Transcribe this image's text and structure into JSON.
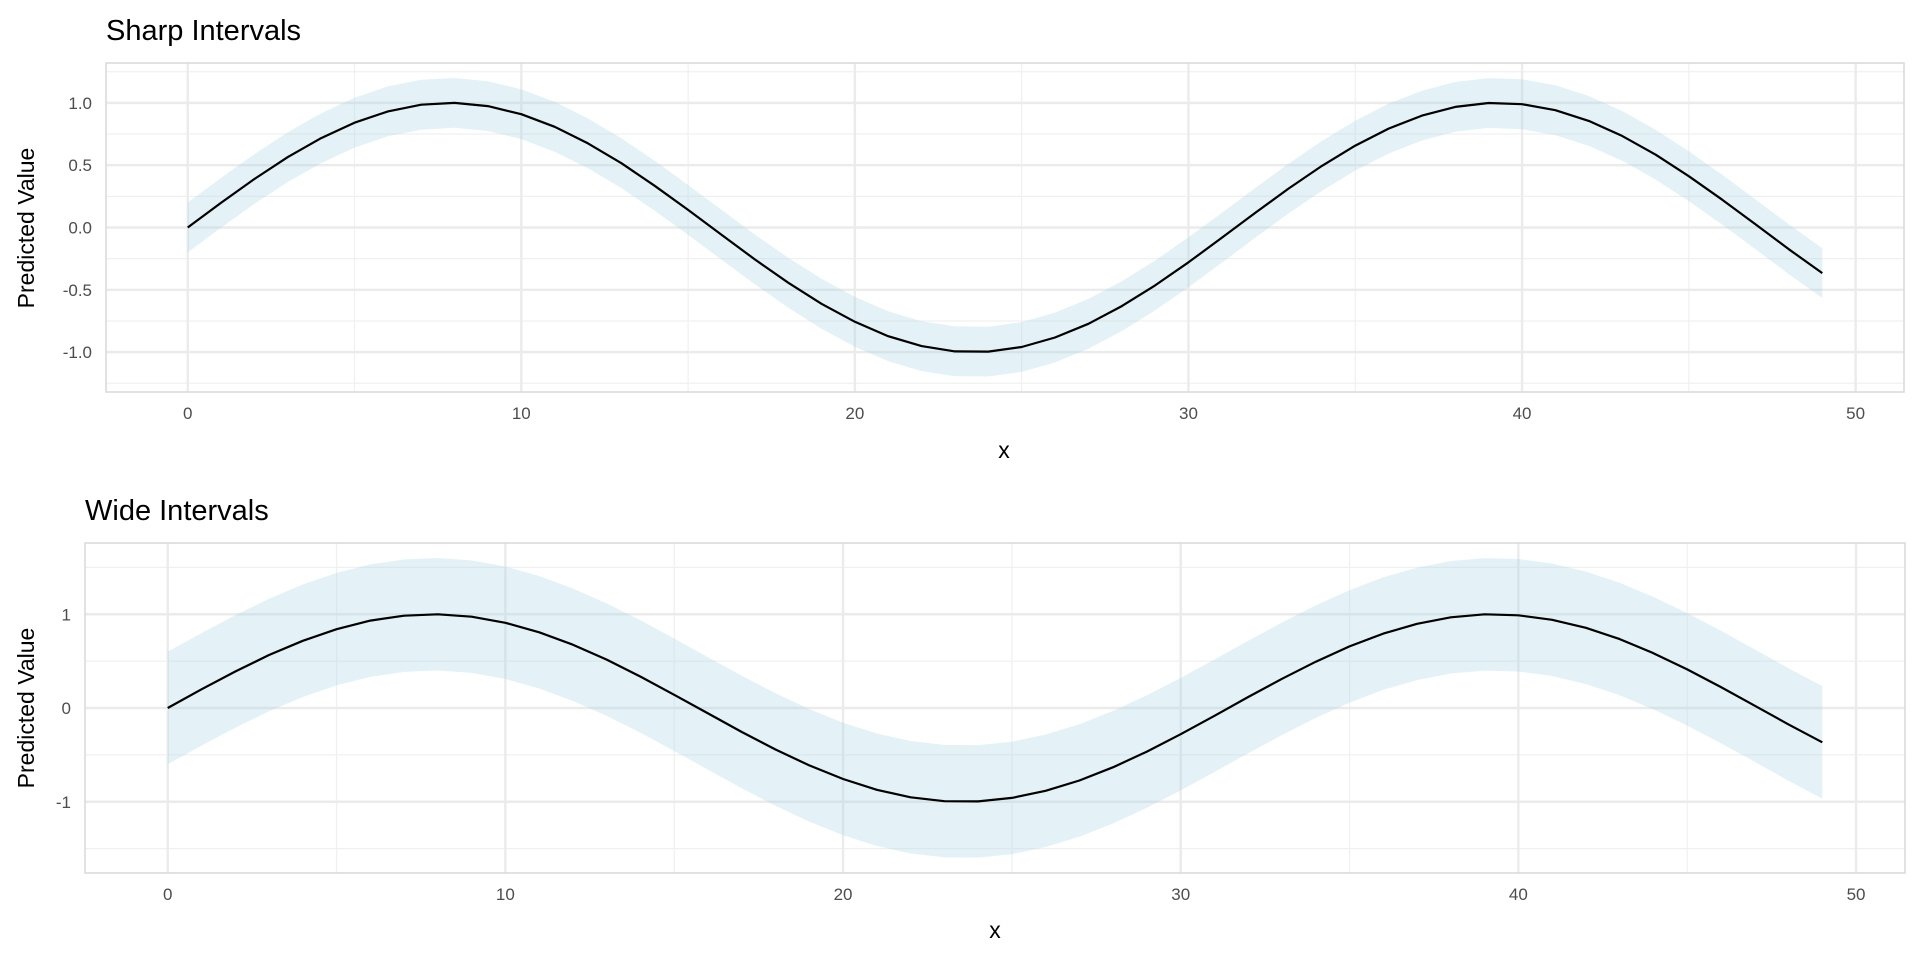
{
  "chart_data": [
    {
      "type": "line",
      "title": "Sharp Intervals",
      "xlabel": "x",
      "ylabel": "Predicted Value",
      "xlim": [
        -2.45,
        51.45
      ],
      "ylim": [
        -1.32,
        1.32
      ],
      "x_ticks": [
        0,
        10,
        20,
        30,
        40,
        50
      ],
      "y_ticks": [
        -1.0,
        -0.5,
        0.0,
        0.5,
        1.0
      ],
      "y_tick_labels": [
        "-1.0",
        "-0.5",
        "0.0",
        "0.5",
        "1.0"
      ],
      "grid": true,
      "colors": {
        "line": "#000000",
        "ribbon": "#add8e6"
      },
      "x": [
        0,
        1,
        2,
        3,
        4,
        5,
        6,
        7,
        8,
        9,
        10,
        11,
        12,
        13,
        14,
        15,
        16,
        17,
        18,
        19,
        20,
        21,
        22,
        23,
        24,
        25,
        26,
        27,
        28,
        29,
        30,
        31,
        32,
        33,
        34,
        35,
        36,
        37,
        38,
        39,
        40,
        41,
        42,
        43,
        44,
        45,
        46,
        47,
        48,
        49
      ],
      "y": [
        0,
        0.199,
        0.389,
        0.565,
        0.717,
        0.841,
        0.932,
        0.985,
        1.0,
        0.974,
        0.909,
        0.808,
        0.675,
        0.516,
        0.335,
        0.141,
        -0.058,
        -0.256,
        -0.443,
        -0.612,
        -0.757,
        -0.872,
        -0.952,
        -0.994,
        -0.996,
        -0.959,
        -0.883,
        -0.773,
        -0.631,
        -0.465,
        -0.279,
        -0.083,
        0.117,
        0.312,
        0.494,
        0.657,
        0.794,
        0.898,
        0.968,
        0.999,
        0.989,
        0.941,
        0.855,
        0.735,
        0.585,
        0.412,
        0.223,
        0.025,
        -0.175,
        -0.366
      ],
      "lower": [
        -0.2,
        -0.001,
        0.189,
        0.365,
        0.517,
        0.641,
        0.732,
        0.785,
        0.8,
        0.774,
        0.709,
        0.608,
        0.475,
        0.316,
        0.135,
        -0.059,
        -0.258,
        -0.456,
        -0.643,
        -0.812,
        -0.957,
        -1.072,
        -1.152,
        -1.194,
        -1.196,
        -1.159,
        -1.083,
        -0.973,
        -0.831,
        -0.665,
        -0.479,
        -0.283,
        -0.083,
        0.112,
        0.294,
        0.457,
        0.594,
        0.698,
        0.768,
        0.799,
        0.789,
        0.741,
        0.655,
        0.535,
        0.385,
        0.212,
        0.023,
        -0.175,
        -0.375,
        -0.566
      ],
      "upper": [
        0.2,
        0.399,
        0.589,
        0.765,
        0.917,
        1.041,
        1.132,
        1.185,
        1.2,
        1.174,
        1.109,
        1.008,
        0.875,
        0.716,
        0.535,
        0.341,
        0.142,
        -0.056,
        -0.243,
        -0.412,
        -0.557,
        -0.672,
        -0.752,
        -0.794,
        -0.796,
        -0.759,
        -0.683,
        -0.573,
        -0.431,
        -0.265,
        -0.079,
        0.117,
        0.317,
        0.512,
        0.694,
        0.857,
        0.994,
        1.098,
        1.168,
        1.199,
        1.189,
        1.141,
        1.055,
        0.935,
        0.785,
        0.612,
        0.423,
        0.225,
        0.025,
        -0.166
      ]
    },
    {
      "type": "line",
      "title": "Wide Intervals",
      "xlabel": "x",
      "ylabel": "Predicted Value",
      "xlim": [
        -2.45,
        51.45
      ],
      "ylim": [
        -1.76,
        1.76
      ],
      "x_ticks": [
        0,
        10,
        20,
        30,
        40,
        50
      ],
      "y_ticks": [
        -1,
        0,
        1
      ],
      "y_tick_labels": [
        "-1",
        "0",
        "1"
      ],
      "grid": true,
      "colors": {
        "line": "#000000",
        "ribbon": "#add8e6"
      },
      "x": [
        0,
        1,
        2,
        3,
        4,
        5,
        6,
        7,
        8,
        9,
        10,
        11,
        12,
        13,
        14,
        15,
        16,
        17,
        18,
        19,
        20,
        21,
        22,
        23,
        24,
        25,
        26,
        27,
        28,
        29,
        30,
        31,
        32,
        33,
        34,
        35,
        36,
        37,
        38,
        39,
        40,
        41,
        42,
        43,
        44,
        45,
        46,
        47,
        48,
        49
      ],
      "y": [
        0,
        0.199,
        0.389,
        0.565,
        0.717,
        0.841,
        0.932,
        0.985,
        1.0,
        0.974,
        0.909,
        0.808,
        0.675,
        0.516,
        0.335,
        0.141,
        -0.058,
        -0.256,
        -0.443,
        -0.612,
        -0.757,
        -0.872,
        -0.952,
        -0.994,
        -0.996,
        -0.959,
        -0.883,
        -0.773,
        -0.631,
        -0.465,
        -0.279,
        -0.083,
        0.117,
        0.312,
        0.494,
        0.657,
        0.794,
        0.898,
        0.968,
        0.999,
        0.989,
        0.941,
        0.855,
        0.735,
        0.585,
        0.412,
        0.223,
        0.025,
        -0.175,
        -0.366
      ],
      "lower": [
        -0.6,
        -0.401,
        -0.211,
        -0.035,
        0.117,
        0.241,
        0.332,
        0.385,
        0.4,
        0.374,
        0.309,
        0.208,
        0.075,
        -0.084,
        -0.265,
        -0.459,
        -0.658,
        -0.856,
        -1.043,
        -1.212,
        -1.357,
        -1.472,
        -1.552,
        -1.594,
        -1.596,
        -1.559,
        -1.483,
        -1.373,
        -1.231,
        -1.065,
        -0.879,
        -0.683,
        -0.483,
        -0.288,
        -0.106,
        0.057,
        0.194,
        0.298,
        0.368,
        0.399,
        0.389,
        0.341,
        0.255,
        0.135,
        -0.015,
        -0.188,
        -0.377,
        -0.575,
        -0.775,
        -0.966
      ],
      "upper": [
        0.6,
        0.799,
        0.989,
        1.165,
        1.317,
        1.441,
        1.532,
        1.585,
        1.6,
        1.574,
        1.509,
        1.408,
        1.275,
        1.116,
        0.935,
        0.741,
        0.542,
        0.344,
        0.157,
        -0.012,
        -0.157,
        -0.272,
        -0.352,
        -0.394,
        -0.396,
        -0.359,
        -0.283,
        -0.173,
        -0.031,
        0.135,
        0.321,
        0.517,
        0.717,
        0.912,
        1.094,
        1.257,
        1.394,
        1.498,
        1.568,
        1.599,
        1.589,
        1.541,
        1.455,
        1.335,
        1.185,
        1.012,
        0.823,
        0.625,
        0.425,
        0.234
      ]
    }
  ]
}
